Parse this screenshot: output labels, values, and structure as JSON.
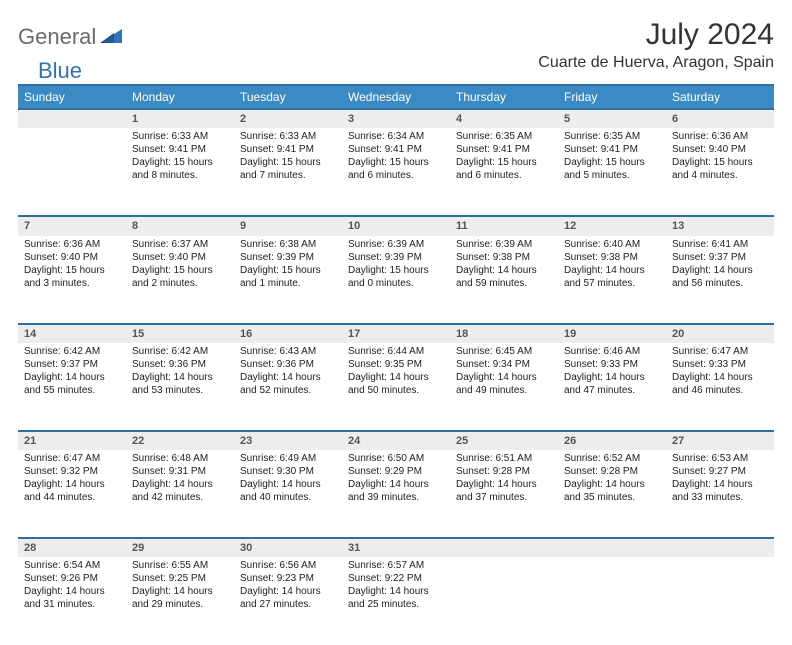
{
  "logo": {
    "part1": "General",
    "part2": "Blue"
  },
  "title": "July 2024",
  "location": "Cuarte de Huerva, Aragon, Spain",
  "weekday_header": {
    "bg_color": "#3b8ac4",
    "text_color": "#ffffff",
    "days": [
      "Sunday",
      "Monday",
      "Tuesday",
      "Wednesday",
      "Thursday",
      "Friday",
      "Saturday"
    ]
  },
  "daynum_bg": "#ededed",
  "divider_color": "#2f6f9f",
  "font_family": "Arial",
  "weeks": [
    {
      "nums": [
        "",
        "1",
        "2",
        "3",
        "4",
        "5",
        "6"
      ],
      "cells": [
        [],
        [
          "Sunrise: 6:33 AM",
          "Sunset: 9:41 PM",
          "Daylight: 15 hours",
          "and 8 minutes."
        ],
        [
          "Sunrise: 6:33 AM",
          "Sunset: 9:41 PM",
          "Daylight: 15 hours",
          "and 7 minutes."
        ],
        [
          "Sunrise: 6:34 AM",
          "Sunset: 9:41 PM",
          "Daylight: 15 hours",
          "and 6 minutes."
        ],
        [
          "Sunrise: 6:35 AM",
          "Sunset: 9:41 PM",
          "Daylight: 15 hours",
          "and 6 minutes."
        ],
        [
          "Sunrise: 6:35 AM",
          "Sunset: 9:41 PM",
          "Daylight: 15 hours",
          "and 5 minutes."
        ],
        [
          "Sunrise: 6:36 AM",
          "Sunset: 9:40 PM",
          "Daylight: 15 hours",
          "and 4 minutes."
        ]
      ]
    },
    {
      "nums": [
        "7",
        "8",
        "9",
        "10",
        "11",
        "12",
        "13"
      ],
      "cells": [
        [
          "Sunrise: 6:36 AM",
          "Sunset: 9:40 PM",
          "Daylight: 15 hours",
          "and 3 minutes."
        ],
        [
          "Sunrise: 6:37 AM",
          "Sunset: 9:40 PM",
          "Daylight: 15 hours",
          "and 2 minutes."
        ],
        [
          "Sunrise: 6:38 AM",
          "Sunset: 9:39 PM",
          "Daylight: 15 hours",
          "and 1 minute."
        ],
        [
          "Sunrise: 6:39 AM",
          "Sunset: 9:39 PM",
          "Daylight: 15 hours",
          "and 0 minutes."
        ],
        [
          "Sunrise: 6:39 AM",
          "Sunset: 9:38 PM",
          "Daylight: 14 hours",
          "and 59 minutes."
        ],
        [
          "Sunrise: 6:40 AM",
          "Sunset: 9:38 PM",
          "Daylight: 14 hours",
          "and 57 minutes."
        ],
        [
          "Sunrise: 6:41 AM",
          "Sunset: 9:37 PM",
          "Daylight: 14 hours",
          "and 56 minutes."
        ]
      ]
    },
    {
      "nums": [
        "14",
        "15",
        "16",
        "17",
        "18",
        "19",
        "20"
      ],
      "cells": [
        [
          "Sunrise: 6:42 AM",
          "Sunset: 9:37 PM",
          "Daylight: 14 hours",
          "and 55 minutes."
        ],
        [
          "Sunrise: 6:42 AM",
          "Sunset: 9:36 PM",
          "Daylight: 14 hours",
          "and 53 minutes."
        ],
        [
          "Sunrise: 6:43 AM",
          "Sunset: 9:36 PM",
          "Daylight: 14 hours",
          "and 52 minutes."
        ],
        [
          "Sunrise: 6:44 AM",
          "Sunset: 9:35 PM",
          "Daylight: 14 hours",
          "and 50 minutes."
        ],
        [
          "Sunrise: 6:45 AM",
          "Sunset: 9:34 PM",
          "Daylight: 14 hours",
          "and 49 minutes."
        ],
        [
          "Sunrise: 6:46 AM",
          "Sunset: 9:33 PM",
          "Daylight: 14 hours",
          "and 47 minutes."
        ],
        [
          "Sunrise: 6:47 AM",
          "Sunset: 9:33 PM",
          "Daylight: 14 hours",
          "and 46 minutes."
        ]
      ]
    },
    {
      "nums": [
        "21",
        "22",
        "23",
        "24",
        "25",
        "26",
        "27"
      ],
      "cells": [
        [
          "Sunrise: 6:47 AM",
          "Sunset: 9:32 PM",
          "Daylight: 14 hours",
          "and 44 minutes."
        ],
        [
          "Sunrise: 6:48 AM",
          "Sunset: 9:31 PM",
          "Daylight: 14 hours",
          "and 42 minutes."
        ],
        [
          "Sunrise: 6:49 AM",
          "Sunset: 9:30 PM",
          "Daylight: 14 hours",
          "and 40 minutes."
        ],
        [
          "Sunrise: 6:50 AM",
          "Sunset: 9:29 PM",
          "Daylight: 14 hours",
          "and 39 minutes."
        ],
        [
          "Sunrise: 6:51 AM",
          "Sunset: 9:28 PM",
          "Daylight: 14 hours",
          "and 37 minutes."
        ],
        [
          "Sunrise: 6:52 AM",
          "Sunset: 9:28 PM",
          "Daylight: 14 hours",
          "and 35 minutes."
        ],
        [
          "Sunrise: 6:53 AM",
          "Sunset: 9:27 PM",
          "Daylight: 14 hours",
          "and 33 minutes."
        ]
      ]
    },
    {
      "nums": [
        "28",
        "29",
        "30",
        "31",
        "",
        "",
        ""
      ],
      "cells": [
        [
          "Sunrise: 6:54 AM",
          "Sunset: 9:26 PM",
          "Daylight: 14 hours",
          "and 31 minutes."
        ],
        [
          "Sunrise: 6:55 AM",
          "Sunset: 9:25 PM",
          "Daylight: 14 hours",
          "and 29 minutes."
        ],
        [
          "Sunrise: 6:56 AM",
          "Sunset: 9:23 PM",
          "Daylight: 14 hours",
          "and 27 minutes."
        ],
        [
          "Sunrise: 6:57 AM",
          "Sunset: 9:22 PM",
          "Daylight: 14 hours",
          "and 25 minutes."
        ],
        [],
        [],
        []
      ]
    }
  ]
}
